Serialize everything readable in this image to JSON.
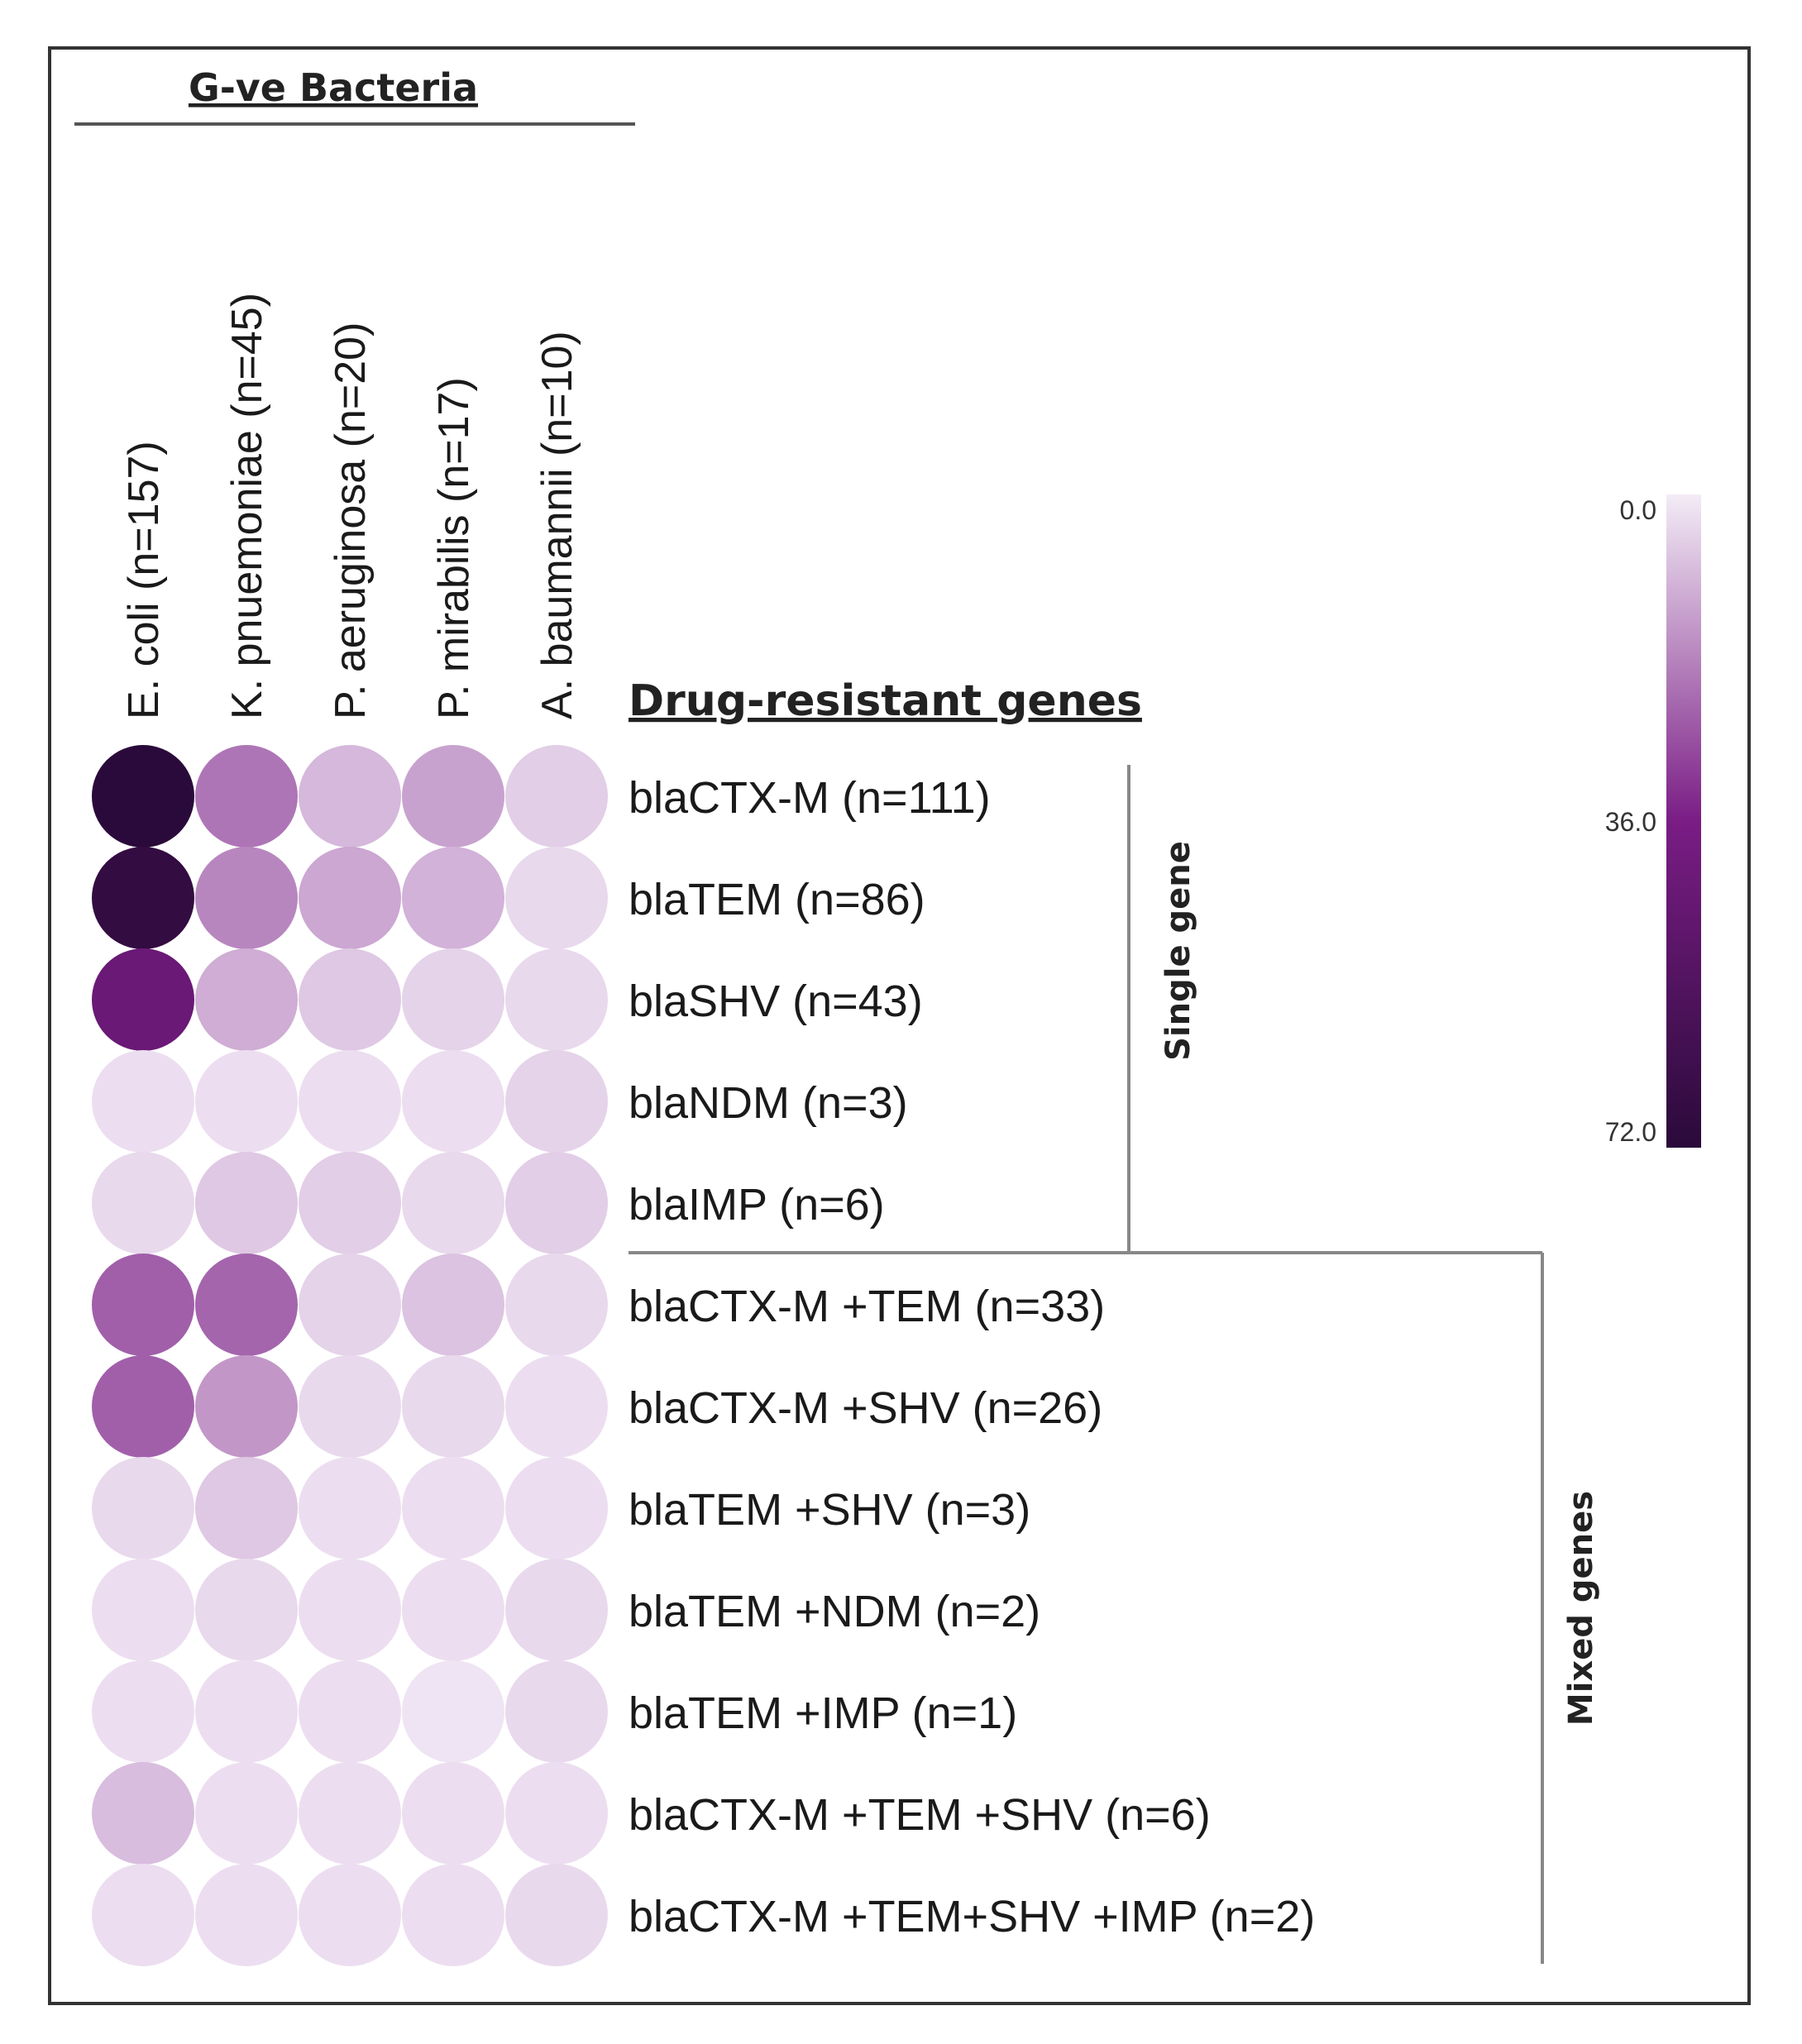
{
  "chart_data": {
    "type": "heatmap",
    "title": "G-ve Bacteria",
    "ylabel": "Drug-resistant genes",
    "columns": [
      "E. coli (n=157)",
      "K. pnuemoniae (n=45)",
      "P. aeruginosa (n=20)",
      "P. mirabilis (n=17)",
      "A. baumannii (n=10)"
    ],
    "rows": [
      "blaCTX-M (n=111)",
      "blaTEM (n=86)",
      "blaSHV (n=43)",
      "blaNDM (n=3)",
      "blaIMP (n=6)",
      "blaCTX-M +TEM (n=33)",
      "blaCTX-M +SHV (n=26)",
      "blaTEM +SHV (n=3)",
      "blaTEM +NDM (n=2)",
      "blaTEM +IMP (n=1)",
      "blaCTX-M +TEM +SHV (n=6)",
      "blaCTX-M +TEM+SHV +IMP (n=2)"
    ],
    "values": [
      [
        72,
        20,
        8,
        12,
        4
      ],
      [
        68,
        17,
        11,
        9,
        2
      ],
      [
        43,
        10,
        5,
        3,
        2
      ],
      [
        1,
        1,
        1,
        1,
        3
      ],
      [
        2,
        5,
        4,
        2,
        4
      ],
      [
        24,
        23,
        3,
        6,
        2
      ],
      [
        24,
        14,
        2,
        2,
        1
      ],
      [
        2,
        5,
        1,
        1,
        1
      ],
      [
        1,
        2,
        1,
        1,
        2
      ],
      [
        1,
        1,
        1,
        0,
        2
      ],
      [
        7,
        1,
        1,
        1,
        1
      ],
      [
        1,
        1,
        1,
        1,
        2
      ]
    ],
    "groups": [
      {
        "label": "Single gene",
        "rows": [
          0,
          4
        ]
      },
      {
        "label": "Mixed genes",
        "rows": [
          5,
          11
        ]
      }
    ],
    "colorbar": {
      "min": 0.0,
      "max": 72.0,
      "ticks": [
        "0.0",
        "36.0",
        "72.0"
      ],
      "low_color": "#efe4f3",
      "mid_color": "#7a1d85",
      "high_color": "#2a0a3a"
    }
  }
}
